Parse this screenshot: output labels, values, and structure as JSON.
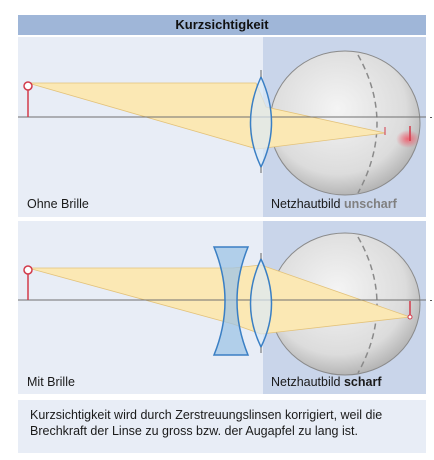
{
  "title": "Kurzsichtigkeit",
  "panel1": {
    "left_label": "Ohne Brille",
    "right_label_prefix": "Netzhautbild",
    "right_label_state": "unscharf"
  },
  "panel2": {
    "left_label": "Mit Brille",
    "right_label_prefix": "Netzhautbild",
    "right_label_state": "scharf"
  },
  "summary": "Kurzsichtigkeit wird durch Zerstreuungslinsen korrigiert, weil die Brechkraft der Linse zu gross bzw. der Augapfel zu lang ist.",
  "colors": {
    "panel_bg": "#e8edf6",
    "eye_region_bg": "#c9d5ea",
    "title_bar": "#9fb6d8",
    "ray_fill": "#fbe8b4",
    "object": "#d23a4a",
    "lens": "#3a7fc4"
  }
}
